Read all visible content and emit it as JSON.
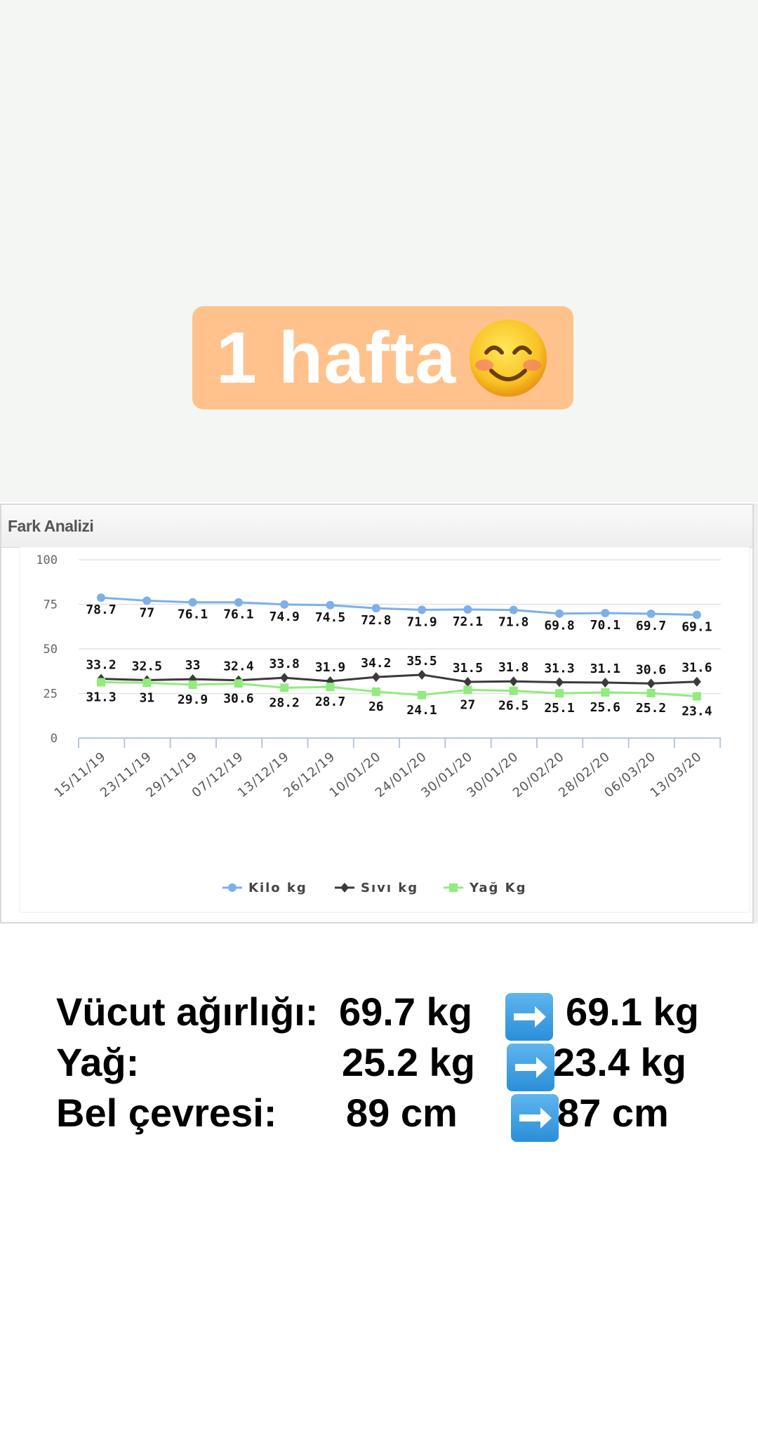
{
  "sticker": {
    "text": "1 hafta",
    "emoji_icon": "smiling-face-icon"
  },
  "panel": {
    "title": "Fark Analizi"
  },
  "chart_data": {
    "type": "line",
    "x": [
      "15/11/19",
      "23/11/19",
      "29/11/19",
      "07/12/19",
      "13/12/19",
      "26/12/19",
      "10/01/20",
      "24/01/20",
      "30/01/20",
      "30/01/20",
      "20/02/20",
      "28/02/20",
      "06/03/20",
      "13/03/20"
    ],
    "yticks": [
      0,
      25,
      50,
      75,
      100
    ],
    "ylim": [
      0,
      100
    ],
    "grid": true,
    "legend_position": "bottom",
    "series": [
      {
        "name": "Kilo kg",
        "marker": "circle",
        "color": "#7cb0e8",
        "values": [
          78.7,
          77,
          76.1,
          76.1,
          74.9,
          74.5,
          72.8,
          71.9,
          72.1,
          71.8,
          69.8,
          70.1,
          69.7,
          69.1
        ],
        "labels": [
          "78.7",
          "77",
          "76.1",
          "76.1",
          "74.9",
          "74.5",
          "72.8",
          "71.9",
          "72.1",
          "71.8",
          "69.8",
          "70.1",
          "69.7",
          "69.1"
        ]
      },
      {
        "name": "Sıvı kg",
        "marker": "diamond",
        "color": "#3a3a3a",
        "values": [
          33.2,
          32.5,
          33,
          32.4,
          33.8,
          31.9,
          34.2,
          35.5,
          31.5,
          31.8,
          31.3,
          31.1,
          30.6,
          31.6
        ],
        "labels": [
          "33.2",
          "32.5",
          "33",
          "32.4",
          "33.8",
          "31.9",
          "34.2",
          "35.5",
          "31.5",
          "31.8",
          "31.3",
          "31.1",
          "30.6",
          "31.6"
        ]
      },
      {
        "name": "Yağ Kg",
        "marker": "square",
        "color": "#90ec7d",
        "values": [
          31.3,
          31,
          29.9,
          30.6,
          28.2,
          28.7,
          26,
          24.1,
          27,
          26.5,
          25.1,
          25.6,
          25.2,
          23.4
        ],
        "labels": [
          "31.3",
          "31",
          "29.9",
          "30.6",
          "28.2",
          "28.7",
          "26",
          "24.1",
          "27",
          "26.5",
          "25.1",
          "25.6",
          "25.2",
          "23.4"
        ]
      }
    ]
  },
  "stats": {
    "rows": [
      {
        "label": "Vücut ağırlığı:",
        "from": "69.7 kg",
        "to": "69.1 kg"
      },
      {
        "label": "Yağ:",
        "from": "25.2 kg",
        "to": "23.4 kg"
      },
      {
        "label": "Bel çevresi:",
        "from": "89 cm",
        "to": "87 cm"
      }
    ],
    "arrow_icon": "right-arrow-icon"
  }
}
